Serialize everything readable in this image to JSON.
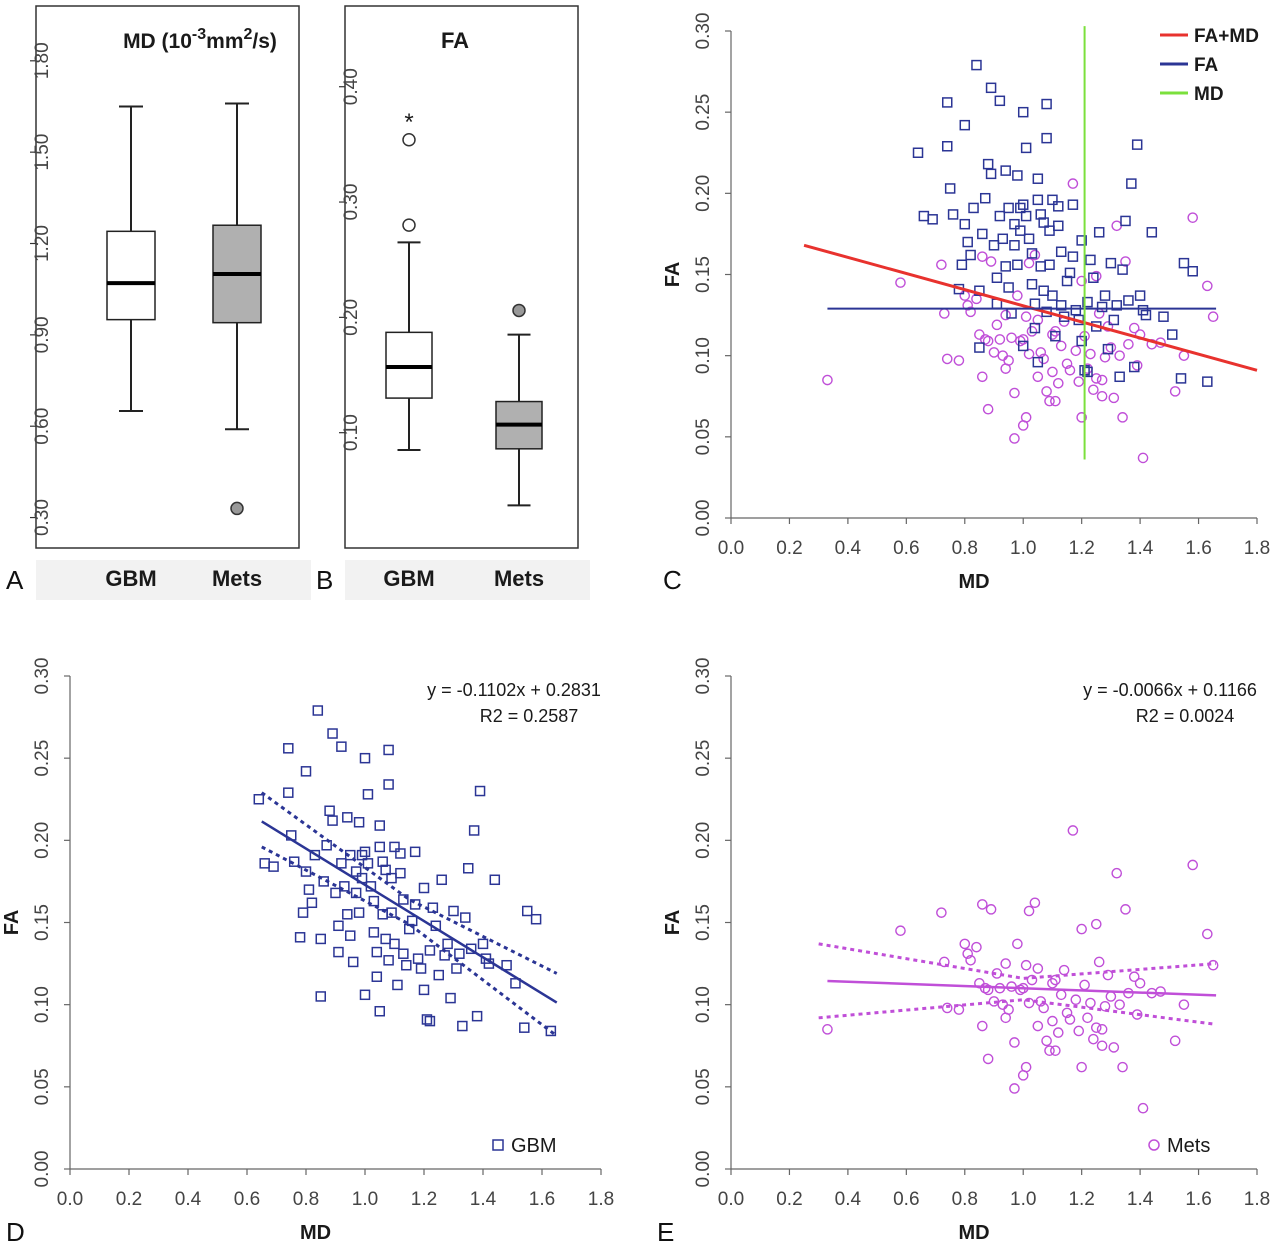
{
  "chart_data": [
    {
      "panel": "A",
      "type": "box",
      "title": "MD (10-3mm2/s)",
      "title_parts": {
        "base": "MD (10",
        "exp1": "-3",
        "mid": "mm",
        "exp2": "2",
        "end": "/s)"
      },
      "categories": [
        "GBM",
        "Mets"
      ],
      "ylim": [
        0.2,
        1.98
      ],
      "yticks": [
        0.3,
        0.6,
        0.9,
        1.2,
        1.5,
        1.8
      ],
      "ytick_labels": [
        "0.30",
        "0.60",
        "0.90",
        "1.20",
        "1.50",
        "1.80"
      ],
      "boxes": [
        {
          "category": "GBM",
          "whisker_low": 0.65,
          "q1": 0.95,
          "median": 1.07,
          "q3": 1.24,
          "whisker_high": 1.65,
          "outliers": [],
          "fill": "#ffffff"
        },
        {
          "category": "Mets",
          "whisker_low": 0.59,
          "q1": 0.94,
          "median": 1.1,
          "q3": 1.26,
          "whisker_high": 1.66,
          "outliers": [
            0.33
          ],
          "fill": "#b0b0b0"
        }
      ]
    },
    {
      "panel": "B",
      "type": "box",
      "title": "FA",
      "categories": [
        "GBM",
        "Mets"
      ],
      "ylim": [
        0.0,
        0.47
      ],
      "yticks": [
        0.1,
        0.2,
        0.3,
        0.4
      ],
      "ytick_labels": [
        "0.10",
        "0.20",
        "0.30",
        "0.40"
      ],
      "annotation": "*",
      "boxes": [
        {
          "category": "GBM",
          "whisker_low": 0.085,
          "q1": 0.13,
          "median": 0.157,
          "q3": 0.187,
          "whisker_high": 0.265,
          "outliers": [
            0.28,
            0.354
          ],
          "fill": "#ffffff"
        },
        {
          "category": "Mets",
          "whisker_low": 0.037,
          "q1": 0.086,
          "median": 0.107,
          "q3": 0.127,
          "whisker_high": 0.185,
          "outliers": [
            0.206
          ],
          "fill": "#b0b0b0"
        }
      ]
    },
    {
      "panel": "C",
      "type": "scatter",
      "xlabel": "MD",
      "ylabel": "FA",
      "xlim": [
        0.0,
        1.8
      ],
      "ylim": [
        0.0,
        0.3
      ],
      "xticks": [
        0.0,
        0.2,
        0.4,
        0.6,
        0.8,
        1.0,
        1.2,
        1.4,
        1.6,
        1.8
      ],
      "xtick_labels": [
        "0.0",
        "0.2",
        "0.4",
        "0.6",
        "0.8",
        "1.0",
        "1.2",
        "1.4",
        "1.6",
        "1.8"
      ],
      "yticks": [
        0.0,
        0.05,
        0.1,
        0.15,
        0.2,
        0.25,
        0.3
      ],
      "ytick_labels": [
        "0.00",
        "0.05",
        "0.10",
        "0.15",
        "0.20",
        "0.25",
        "0.30"
      ],
      "legend_position": "top-right",
      "series_ref": [
        "GBM",
        "Mets"
      ],
      "lines": [
        {
          "name": "FA+MD",
          "color": "#e8322e",
          "x": [
            0.25,
            1.8
          ],
          "y": [
            0.168,
            0.091
          ]
        },
        {
          "name": "FA",
          "color": "#2b3595",
          "x": [
            0.33,
            1.66
          ],
          "y": [
            0.129,
            0.129
          ]
        },
        {
          "name": "MD",
          "color": "#7be03c",
          "x": [
            1.21,
            1.21
          ],
          "y": [
            0.036,
            0.303
          ]
        }
      ]
    },
    {
      "panel": "D",
      "type": "scatter",
      "xlabel": "MD",
      "ylabel": "FA",
      "xlim": [
        0.0,
        1.8
      ],
      "ylim": [
        0.0,
        0.3
      ],
      "xticks": [
        0.0,
        0.2,
        0.4,
        0.6,
        0.8,
        1.0,
        1.2,
        1.4,
        1.6,
        1.8
      ],
      "xtick_labels": [
        "0.0",
        "0.2",
        "0.4",
        "0.6",
        "0.8",
        "1.0",
        "1.2",
        "1.4",
        "1.6",
        "1.8"
      ],
      "yticks": [
        0.0,
        0.05,
        0.1,
        0.15,
        0.2,
        0.25,
        0.3
      ],
      "ytick_labels": [
        "0.00",
        "0.05",
        "0.10",
        "0.15",
        "0.20",
        "0.25",
        "0.30"
      ],
      "equation": "y = -0.1102x + 0.2831",
      "r2": "R2 = 0.2587",
      "legend_label": "GBM",
      "legend_position": "bottom-right",
      "series_ref": "GBM",
      "fit": {
        "slope": -0.1102,
        "intercept": 0.2831,
        "x": [
          0.65,
          1.65
        ]
      },
      "ci_upper": {
        "x": [
          0.65,
          1.15,
          1.65
        ],
        "y": [
          0.229,
          0.164,
          0.119
        ]
      },
      "ci_lower": {
        "x": [
          0.65,
          1.15,
          1.65
        ],
        "y": [
          0.196,
          0.149,
          0.081
        ]
      },
      "color": "#2b3595"
    },
    {
      "panel": "E",
      "type": "scatter",
      "xlabel": "MD",
      "ylabel": "FA",
      "xlim": [
        0.0,
        1.8
      ],
      "ylim": [
        0.0,
        0.3
      ],
      "xticks": [
        0.0,
        0.2,
        0.4,
        0.6,
        0.8,
        1.0,
        1.2,
        1.4,
        1.6,
        1.8
      ],
      "xtick_labels": [
        "0.0",
        "0.2",
        "0.4",
        "0.6",
        "0.8",
        "1.0",
        "1.2",
        "1.4",
        "1.6",
        "1.8"
      ],
      "yticks": [
        0.0,
        0.05,
        0.1,
        0.15,
        0.2,
        0.25,
        0.3
      ],
      "ytick_labels": [
        "0.00",
        "0.05",
        "0.10",
        "0.15",
        "0.20",
        "0.25",
        "0.30"
      ],
      "equation": "y = -0.0066x + 0.1166",
      "r2": "R2 = 0.0024",
      "legend_label": "Mets",
      "legend_position": "bottom-right",
      "series_ref": "Mets",
      "fit": {
        "slope": -0.0066,
        "intercept": 0.1166,
        "x": [
          0.33,
          1.66
        ]
      },
      "ci_upper": {
        "x": [
          0.3,
          1.0,
          1.66
        ],
        "y": [
          0.137,
          0.116,
          0.125
        ]
      },
      "ci_lower": {
        "x": [
          0.3,
          1.0,
          1.66
        ],
        "y": [
          0.092,
          0.103,
          0.088
        ]
      },
      "color": "#c04fd8"
    }
  ],
  "scatter_series": {
    "GBM": {
      "marker": "square",
      "color": "#2b3595",
      "points": [
        [
          0.64,
          0.225
        ],
        [
          0.66,
          0.186
        ],
        [
          0.69,
          0.184
        ],
        [
          0.74,
          0.256
        ],
        [
          0.74,
          0.229
        ],
        [
          0.75,
          0.203
        ],
        [
          0.76,
          0.187
        ],
        [
          0.78,
          0.141
        ],
        [
          0.79,
          0.156
        ],
        [
          0.8,
          0.242
        ],
        [
          0.8,
          0.181
        ],
        [
          0.81,
          0.17
        ],
        [
          0.82,
          0.162
        ],
        [
          0.83,
          0.191
        ],
        [
          0.84,
          0.279
        ],
        [
          0.85,
          0.105
        ],
        [
          0.85,
          0.14
        ],
        [
          0.86,
          0.175
        ],
        [
          0.87,
          0.197
        ],
        [
          0.88,
          0.218
        ],
        [
          0.89,
          0.265
        ],
        [
          0.89,
          0.212
        ],
        [
          0.9,
          0.168
        ],
        [
          0.91,
          0.132
        ],
        [
          0.91,
          0.148
        ],
        [
          0.92,
          0.257
        ],
        [
          0.92,
          0.186
        ],
        [
          0.93,
          0.172
        ],
        [
          0.94,
          0.214
        ],
        [
          0.94,
          0.155
        ],
        [
          0.95,
          0.191
        ],
        [
          0.95,
          0.142
        ],
        [
          0.96,
          0.126
        ],
        [
          0.97,
          0.181
        ],
        [
          0.97,
          0.168
        ],
        [
          0.98,
          0.211
        ],
        [
          0.98,
          0.156
        ],
        [
          0.99,
          0.177
        ],
        [
          0.99,
          0.191
        ],
        [
          1.0,
          0.25
        ],
        [
          1.0,
          0.193
        ],
        [
          1.0,
          0.106
        ],
        [
          1.01,
          0.228
        ],
        [
          1.01,
          0.186
        ],
        [
          1.02,
          0.172
        ],
        [
          1.03,
          0.144
        ],
        [
          1.03,
          0.163
        ],
        [
          1.04,
          0.132
        ],
        [
          1.04,
          0.117
        ],
        [
          1.05,
          0.209
        ],
        [
          1.05,
          0.196
        ],
        [
          1.05,
          0.096
        ],
        [
          1.06,
          0.187
        ],
        [
          1.06,
          0.155
        ],
        [
          1.07,
          0.182
        ],
        [
          1.07,
          0.14
        ],
        [
          1.08,
          0.234
        ],
        [
          1.08,
          0.255
        ],
        [
          1.08,
          0.127
        ],
        [
          1.09,
          0.177
        ],
        [
          1.09,
          0.156
        ],
        [
          1.1,
          0.196
        ],
        [
          1.1,
          0.137
        ],
        [
          1.11,
          0.112
        ],
        [
          1.12,
          0.192
        ],
        [
          1.12,
          0.18
        ],
        [
          1.13,
          0.164
        ],
        [
          1.13,
          0.131
        ],
        [
          1.14,
          0.124
        ],
        [
          1.15,
          0.146
        ],
        [
          1.16,
          0.151
        ],
        [
          1.17,
          0.193
        ],
        [
          1.17,
          0.161
        ],
        [
          1.18,
          0.128
        ],
        [
          1.19,
          0.122
        ],
        [
          1.2,
          0.109
        ],
        [
          1.2,
          0.171
        ],
        [
          1.21,
          0.091
        ],
        [
          1.22,
          0.09
        ],
        [
          1.22,
          0.133
        ],
        [
          1.23,
          0.159
        ],
        [
          1.24,
          0.148
        ],
        [
          1.25,
          0.118
        ],
        [
          1.26,
          0.176
        ],
        [
          1.27,
          0.13
        ],
        [
          1.28,
          0.137
        ],
        [
          1.29,
          0.104
        ],
        [
          1.3,
          0.157
        ],
        [
          1.31,
          0.122
        ],
        [
          1.32,
          0.131
        ],
        [
          1.33,
          0.087
        ],
        [
          1.34,
          0.153
        ],
        [
          1.35,
          0.183
        ],
        [
          1.36,
          0.134
        ],
        [
          1.37,
          0.206
        ],
        [
          1.38,
          0.093
        ],
        [
          1.39,
          0.23
        ],
        [
          1.4,
          0.137
        ],
        [
          1.41,
          0.128
        ],
        [
          1.42,
          0.125
        ],
        [
          1.44,
          0.176
        ],
        [
          1.48,
          0.124
        ],
        [
          1.51,
          0.113
        ],
        [
          1.54,
          0.086
        ],
        [
          1.55,
          0.157
        ],
        [
          1.58,
          0.152
        ],
        [
          1.63,
          0.084
        ]
      ]
    },
    "Mets": {
      "marker": "circle",
      "color": "#c04fd8",
      "points": [
        [
          0.33,
          0.085
        ],
        [
          0.58,
          0.145
        ],
        [
          0.72,
          0.156
        ],
        [
          0.73,
          0.126
        ],
        [
          0.74,
          0.098
        ],
        [
          0.78,
          0.097
        ],
        [
          0.8,
          0.137
        ],
        [
          0.81,
          0.131
        ],
        [
          0.82,
          0.127
        ],
        [
          0.84,
          0.135
        ],
        [
          0.85,
          0.113
        ],
        [
          0.86,
          0.161
        ],
        [
          0.86,
          0.087
        ],
        [
          0.87,
          0.11
        ],
        [
          0.88,
          0.067
        ],
        [
          0.88,
          0.109
        ],
        [
          0.89,
          0.158
        ],
        [
          0.9,
          0.102
        ],
        [
          0.91,
          0.119
        ],
        [
          0.92,
          0.11
        ],
        [
          0.93,
          0.1
        ],
        [
          0.94,
          0.092
        ],
        [
          0.94,
          0.125
        ],
        [
          0.95,
          0.097
        ],
        [
          0.96,
          0.111
        ],
        [
          0.97,
          0.077
        ],
        [
          0.97,
          0.049
        ],
        [
          0.98,
          0.137
        ],
        [
          0.99,
          0.109
        ],
        [
          1.0,
          0.11
        ],
        [
          1.0,
          0.057
        ],
        [
          1.01,
          0.062
        ],
        [
          1.01,
          0.124
        ],
        [
          1.02,
          0.101
        ],
        [
          1.02,
          0.157
        ],
        [
          1.03,
          0.115
        ],
        [
          1.04,
          0.162
        ],
        [
          1.05,
          0.122
        ],
        [
          1.05,
          0.087
        ],
        [
          1.06,
          0.102
        ],
        [
          1.07,
          0.098
        ],
        [
          1.08,
          0.078
        ],
        [
          1.09,
          0.072
        ],
        [
          1.1,
          0.113
        ],
        [
          1.1,
          0.09
        ],
        [
          1.11,
          0.115
        ],
        [
          1.11,
          0.072
        ],
        [
          1.12,
          0.083
        ],
        [
          1.13,
          0.106
        ],
        [
          1.14,
          0.121
        ],
        [
          1.15,
          0.095
        ],
        [
          1.16,
          0.091
        ],
        [
          1.17,
          0.206
        ],
        [
          1.18,
          0.103
        ],
        [
          1.19,
          0.084
        ],
        [
          1.2,
          0.146
        ],
        [
          1.2,
          0.062
        ],
        [
          1.21,
          0.112
        ],
        [
          1.22,
          0.092
        ],
        [
          1.23,
          0.101
        ],
        [
          1.24,
          0.079
        ],
        [
          1.25,
          0.086
        ],
        [
          1.25,
          0.149
        ],
        [
          1.26,
          0.126
        ],
        [
          1.27,
          0.085
        ],
        [
          1.27,
          0.075
        ],
        [
          1.28,
          0.099
        ],
        [
          1.29,
          0.118
        ],
        [
          1.3,
          0.105
        ],
        [
          1.31,
          0.074
        ],
        [
          1.32,
          0.18
        ],
        [
          1.33,
          0.1
        ],
        [
          1.34,
          0.062
        ],
        [
          1.35,
          0.158
        ],
        [
          1.36,
          0.107
        ],
        [
          1.38,
          0.117
        ],
        [
          1.39,
          0.094
        ],
        [
          1.4,
          0.113
        ],
        [
          1.41,
          0.037
        ],
        [
          1.44,
          0.107
        ],
        [
          1.47,
          0.108
        ],
        [
          1.52,
          0.078
        ],
        [
          1.55,
          0.1
        ],
        [
          1.58,
          0.185
        ],
        [
          1.63,
          0.143
        ],
        [
          1.65,
          0.124
        ]
      ]
    }
  },
  "panel_letters": [
    "A",
    "B",
    "C",
    "D",
    "E"
  ]
}
